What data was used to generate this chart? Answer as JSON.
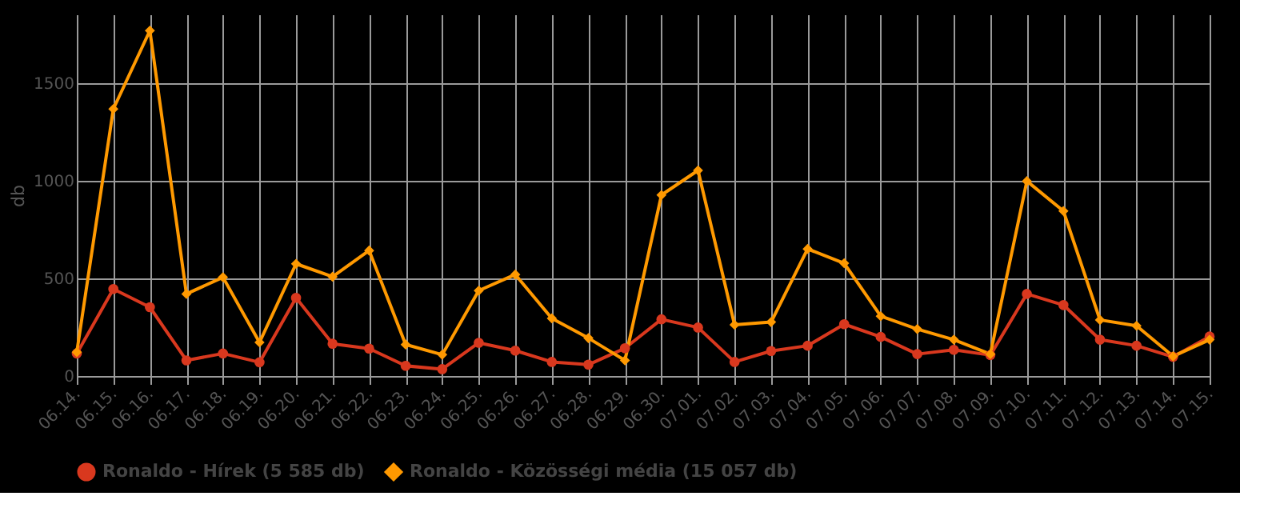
{
  "chart_data": {
    "type": "line",
    "ylabel": "db",
    "categories": [
      "06.14.",
      "06.15.",
      "06.16.",
      "06.17.",
      "06.18.",
      "06.19.",
      "06.20.",
      "06.21.",
      "06.22.",
      "06.23.",
      "06.24.",
      "06.25.",
      "06.26.",
      "06.27.",
      "06.28.",
      "06.29.",
      "06.30.",
      "07.01.",
      "07.02.",
      "07.03.",
      "07.04.",
      "07.05.",
      "07.06.",
      "07.07.",
      "07.08.",
      "07.09.",
      "07.10.",
      "07.11.",
      "07.12.",
      "07.13.",
      "07.14.",
      "07.15."
    ],
    "series": [
      {
        "name": "Ronaldo - Hírek (5 585 db)",
        "color": "#d9381e",
        "marker": "circle",
        "values": [
          115,
          445,
          352,
          80,
          115,
          70,
          400,
          165,
          140,
          52,
          35,
          170,
          130,
          72,
          58,
          142,
          290,
          248,
          72,
          128,
          155,
          265,
          200,
          112,
          134,
          107,
          420,
          363,
          186,
          155,
          98,
          202
        ]
      },
      {
        "name": "Ronaldo - Közösségi média (15 057 db)",
        "color": "#ff9900",
        "marker": "diamond",
        "values": [
          122,
          1366,
          1767,
          420,
          505,
          172,
          574,
          508,
          642,
          161,
          109,
          437,
          519,
          295,
          194,
          80,
          926,
          1052,
          262,
          276,
          650,
          577,
          306,
          240,
          186,
          112,
          997,
          844,
          287,
          257,
          101,
          186
        ]
      }
    ],
    "ylim": [
      0,
      1850
    ],
    "yticks": [
      0,
      500,
      1000,
      1500
    ],
    "grid": true,
    "legend": "bottom",
    "line_style": "solid"
  }
}
